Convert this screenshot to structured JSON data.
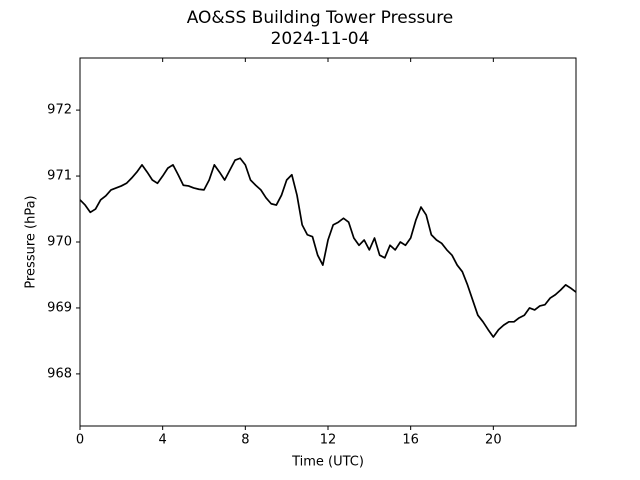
{
  "chart_data": {
    "type": "line",
    "title": "AO&SS Building Tower Pressure",
    "subtitle": "2024-11-04",
    "x_label": "Time (UTC)",
    "y_label": "Pressure (hPa)",
    "x": [
      0,
      0.25,
      0.5,
      0.75,
      1,
      1.25,
      1.5,
      1.75,
      2,
      2.25,
      2.5,
      2.75,
      3,
      3.25,
      3.5,
      3.75,
      4,
      4.25,
      4.5,
      4.75,
      5,
      5.25,
      5.5,
      5.75,
      6,
      6.25,
      6.5,
      6.75,
      7,
      7.25,
      7.5,
      7.75,
      8,
      8.25,
      8.5,
      8.75,
      9,
      9.25,
      9.5,
      9.75,
      10,
      10.25,
      10.5,
      10.75,
      11,
      11.25,
      11.5,
      11.75,
      12,
      12.25,
      12.5,
      12.75,
      13,
      13.25,
      13.5,
      13.75,
      14,
      14.25,
      14.5,
      14.75,
      15,
      15.25,
      15.5,
      15.75,
      16,
      16.25,
      16.5,
      16.75,
      17,
      17.25,
      17.5,
      17.75,
      18,
      18.25,
      18.5,
      18.75,
      19,
      19.25,
      19.5,
      19.75,
      20,
      20.25,
      20.5,
      20.75,
      21,
      21.25,
      21.5,
      21.75,
      22,
      22.25,
      22.5,
      22.75,
      23,
      23.25,
      23.5,
      23.75,
      24
    ],
    "series": [
      {
        "name": "Pressure",
        "color": "#000000",
        "values": [
          970.64,
          970.56,
          970.45,
          970.5,
          970.64,
          970.7,
          970.79,
          970.82,
          970.85,
          970.89,
          970.97,
          971.06,
          971.17,
          971.06,
          970.94,
          970.89,
          971.0,
          971.12,
          971.17,
          971.02,
          970.86,
          970.85,
          970.82,
          970.8,
          970.79,
          970.94,
          971.17,
          971.06,
          970.94,
          971.09,
          971.24,
          971.27,
          971.17,
          970.94,
          970.86,
          970.79,
          970.67,
          970.58,
          970.56,
          970.71,
          970.94,
          971.02,
          970.71,
          970.26,
          970.11,
          970.08,
          969.8,
          969.65,
          970.03,
          970.26,
          970.3,
          970.36,
          970.3,
          970.06,
          969.95,
          970.03,
          969.88,
          970.06,
          969.8,
          969.76,
          969.95,
          969.88,
          970.0,
          969.95,
          970.06,
          970.33,
          970.53,
          970.41,
          970.11,
          970.03,
          969.98,
          969.88,
          969.8,
          969.65,
          969.55,
          969.35,
          969.12,
          968.89,
          968.79,
          968.67,
          968.56,
          968.67,
          968.74,
          968.79,
          968.79,
          968.85,
          968.89,
          969.0,
          968.97,
          969.03,
          969.05,
          969.15,
          969.2,
          969.27,
          969.35,
          969.3,
          969.24
        ]
      }
    ],
    "xlim": [
      0,
      24
    ],
    "xticks": [
      0,
      4,
      8,
      12,
      16,
      20
    ],
    "ylim": [
      967.21,
      972.79
    ],
    "yticks": [
      968,
      969,
      970,
      971,
      972
    ],
    "grid": false
  }
}
